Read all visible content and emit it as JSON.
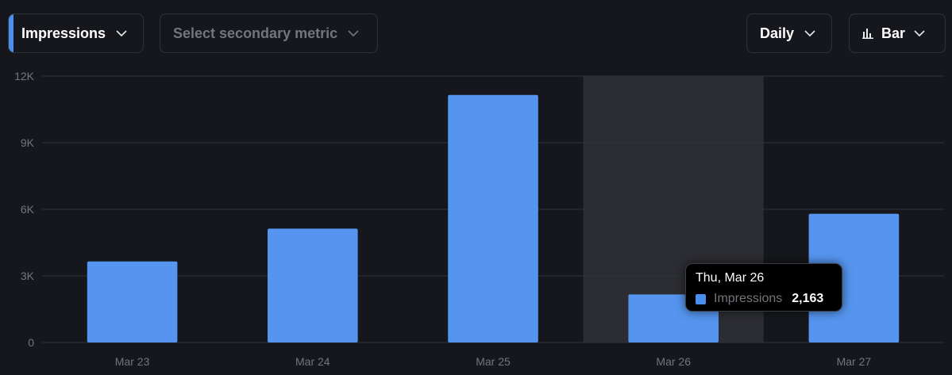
{
  "controls": {
    "primary_metric": "Impressions",
    "secondary_metric_placeholder": "Select secondary metric",
    "interval": "Daily",
    "chart_type": "Bar"
  },
  "colors": {
    "bar": "#5595ef",
    "accent": "#4a8ff0",
    "highlight": "#2c2d32",
    "grid": "#2f3336",
    "axis_text": "#71767b"
  },
  "tooltip": {
    "date": "Thu, Mar 26",
    "series": "Impressions",
    "value": "2,163"
  },
  "chart_data": {
    "type": "bar",
    "title": "",
    "xlabel": "",
    "ylabel": "",
    "categories": [
      "Mar 23",
      "Mar 24",
      "Mar 25",
      "Mar 26",
      "Mar 27"
    ],
    "series": [
      {
        "name": "Impressions",
        "values": [
          3650,
          5130,
          11150,
          2163,
          5800
        ]
      }
    ],
    "ylim": [
      0,
      12000
    ],
    "yticks": [
      0,
      3000,
      6000,
      9000,
      12000
    ],
    "ytick_labels": [
      "0",
      "3K",
      "6K",
      "9K",
      "12K"
    ],
    "highlighted_category": "Mar 26",
    "grid": true,
    "legend": "none"
  }
}
